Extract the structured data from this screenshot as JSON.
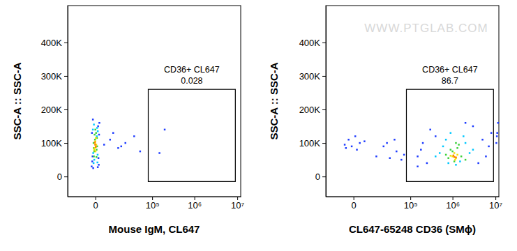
{
  "chart_data": [
    {
      "type": "scatter",
      "log": "x",
      "xlabel": "Mouse IgM, CL647",
      "ylabel": "SSC-A :: SSC-A",
      "xlim": [
        -17000,
        12000000
      ],
      "ylim": [
        -60000,
        510000
      ],
      "xticks": [
        0,
        {
          "value": 100000,
          "label": "10⁵"
        },
        {
          "value": 1000000,
          "label": "10⁶"
        },
        {
          "value": 10000000,
          "label": "10⁷"
        }
      ],
      "yticks": [
        0,
        {
          "value": 100000,
          "label": "100K"
        },
        {
          "value": 200000,
          "label": "200K"
        },
        {
          "value": 300000,
          "label": "300K"
        },
        {
          "value": 400000,
          "label": "400K"
        }
      ],
      "gate": {
        "name": "CD36+ CL647",
        "value": 0.028,
        "x": [
          80000,
          9000000
        ],
        "y": [
          -15000,
          260000
        ]
      },
      "series": [
        {
          "color": "#1e3cff",
          "x": [
            -1100,
            -900,
            1000,
            1200,
            -700,
            800,
            -1000,
            1100,
            -600,
            700,
            -800,
            900,
            3000,
            6000,
            12000,
            20000,
            35000,
            50000,
            8000,
            15000,
            150000,
            200000
          ],
          "values": [
            30000,
            45000,
            35000,
            160000,
            170000,
            150000,
            130000,
            125000,
            25000,
            28000,
            60000,
            55000,
            95000,
            110000,
            85000,
            100000,
            120000,
            75000,
            130000,
            90000,
            70000,
            140000
          ]
        },
        {
          "color": "#00c8ff",
          "x": [
            -500,
            600,
            -700,
            700,
            -400,
            500,
            -600,
            650,
            -300,
            400
          ],
          "values": [
            40000,
            42000,
            140000,
            135000,
            155000,
            145000,
            70000,
            65000,
            50000,
            120000
          ]
        },
        {
          "color": "#3cd23c",
          "x": [
            -400,
            300,
            -200,
            450,
            -500,
            200,
            -300,
            350,
            -100,
            500,
            0,
            -450
          ],
          "values": [
            60000,
            58000,
            125000,
            115000,
            100000,
            130000,
            75000,
            80000,
            110000,
            90000,
            140000,
            85000
          ]
        },
        {
          "color": "#f0e000",
          "x": [
            -200,
            100,
            -100,
            250,
            0,
            -300,
            150,
            50
          ],
          "values": [
            85000,
            90000,
            100000,
            95000,
            105000,
            80000,
            115000,
            75000
          ]
        },
        {
          "color": "#ff8000",
          "x": [
            -50,
            100,
            -150
          ],
          "values": [
            95000,
            88000,
            102000
          ]
        }
      ]
    },
    {
      "type": "scatter",
      "log": "x",
      "xlabel": "CL647-65248 CD36 (SMϕ)",
      "ylabel": "SSC-A :: SSC-A",
      "annotations": [
        "WWW.PTGLAB.COM"
      ],
      "xlim": [
        -17000,
        12000000
      ],
      "ylim": [
        -60000,
        510000
      ],
      "xticks": [
        0,
        {
          "value": 100000,
          "label": "10⁵"
        },
        {
          "value": 1000000,
          "label": "10⁶"
        },
        {
          "value": 10000000,
          "label": "10⁷"
        }
      ],
      "yticks": [
        0,
        {
          "value": 100000,
          "label": "100K"
        },
        {
          "value": 200000,
          "label": "200K"
        },
        {
          "value": 300000,
          "label": "300K"
        },
        {
          "value": 400000,
          "label": "400K"
        }
      ],
      "gate": {
        "name": "CD36+ CL647",
        "value": 86.7,
        "x": [
          80000,
          9000000
        ],
        "y": [
          -15000,
          260000
        ]
      },
      "series": [
        {
          "color": "#1e3cff",
          "x": [
            -3000,
            -1500,
            500,
            2000,
            -2500,
            1000,
            4000,
            -500,
            12000,
            20000,
            30000,
            45000,
            60000,
            25000,
            70000,
            40000,
            150000,
            200000,
            300000,
            250000,
            400000,
            3000000,
            5000000,
            7000000,
            4000000,
            2000000,
            150000,
            180000,
            6000000,
            8000000,
            10500000,
            11000000,
            11500000,
            10800000
          ],
          "values": [
            95000,
            110000,
            120000,
            100000,
            85000,
            80000,
            105000,
            90000,
            60000,
            90000,
            55000,
            75000,
            50000,
            100000,
            65000,
            110000,
            60000,
            100000,
            140000,
            40000,
            120000,
            150000,
            110000,
            90000,
            40000,
            160000,
            30000,
            80000,
            60000,
            130000,
            100000,
            130000,
            160000,
            120000
          ]
        },
        {
          "color": "#00c8ff",
          "x": [
            500000,
            700000,
            800000,
            1500000,
            2000000,
            2500000,
            600000,
            1800000,
            900000,
            3000000,
            400000,
            1200000
          ],
          "values": [
            70000,
            110000,
            40000,
            45000,
            100000,
            70000,
            90000,
            120000,
            130000,
            80000,
            60000,
            35000
          ]
        },
        {
          "color": "#3cd23c",
          "x": [
            800000,
            1000000,
            1300000,
            1600000,
            700000,
            1100000,
            1400000,
            900000,
            2000000,
            1200000
          ],
          "values": [
            55000,
            75000,
            85000,
            60000,
            65000,
            45000,
            95000,
            80000,
            50000,
            100000
          ]
        },
        {
          "color": "#f0e000",
          "x": [
            1000000,
            1200000,
            1100000,
            1300000,
            900000,
            1150000
          ],
          "values": [
            60000,
            55000,
            70000,
            65000,
            62000,
            50000
          ]
        },
        {
          "color": "#ff8000",
          "x": [
            1100000,
            1050000,
            1200000
          ],
          "values": [
            58000,
            63000,
            57000
          ]
        }
      ]
    }
  ]
}
